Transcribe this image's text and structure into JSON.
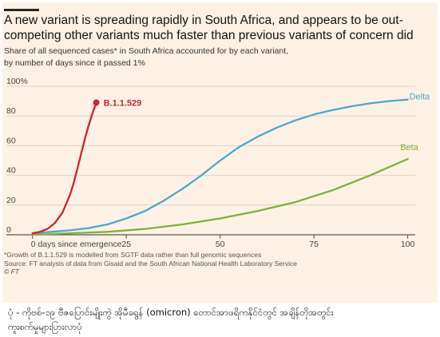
{
  "chart_data": {
    "type": "line",
    "title": "A new variant is spreading rapidly in South Africa, and appears to be out-competing other variants much faster than previous variants of concern did",
    "subtitle_lines": [
      "Share of all sequenced cases* in South Africa accounted for by each variant,",
      "by number of days since it passed 1%"
    ],
    "y_unit_label": "100%",
    "x_tick_labels": [
      "0 days since emergence",
      "25",
      "50",
      "75",
      "100"
    ],
    "x_ticks": [
      0,
      25,
      50,
      75,
      100
    ],
    "y_ticks": [
      0,
      20,
      40,
      60,
      80
    ],
    "xlim": [
      -1,
      102
    ],
    "ylim": [
      0,
      100
    ],
    "grid": "horizontal",
    "series": [
      {
        "name": "B.1.1.529",
        "color": "#cc2529",
        "x": [
          0,
          2,
          4,
          6,
          8,
          10,
          11,
          12,
          13,
          14,
          15,
          16,
          17
        ],
        "y": [
          1,
          2,
          4,
          8,
          15,
          27,
          35,
          45,
          55,
          65,
          74,
          82,
          89
        ]
      },
      {
        "name": "Delta",
        "color": "#4aa7d2",
        "x": [
          0,
          5,
          10,
          15,
          20,
          25,
          30,
          35,
          40,
          45,
          50,
          55,
          60,
          65,
          70,
          75,
          80,
          85,
          90,
          95,
          100
        ],
        "y": [
          1,
          2,
          3,
          4.5,
          7,
          11,
          16,
          23,
          31,
          40,
          50,
          59,
          66,
          72,
          77,
          81,
          84,
          86.5,
          88.5,
          90,
          91
        ]
      },
      {
        "name": "Beta",
        "color": "#7fb233",
        "x": [
          0,
          10,
          20,
          30,
          40,
          50,
          60,
          70,
          80,
          90,
          100
        ],
        "y": [
          0,
          1,
          2,
          4,
          7,
          11,
          16,
          22,
          30,
          40,
          51
        ]
      }
    ]
  },
  "footnote": {
    "lines": [
      "*Growth of B.1.1.529 is modelled from SGTF data rather than full genomic sequences",
      "Source: FT analysis of data from Gisaid and the South African National Health Laboratory Service"
    ],
    "credit": "© FT"
  },
  "caption": {
    "lines": [
      "ပုံ - ကိုဗစ်-၁၉ ဗီဇပြောင်းမျိုးကွဲ အိုမီခရွန် (omicron) တောင်အာဖရိကနိုင်ငံတွင် အချိန်တိုအတွင်း",
      "ကူးစက်မှုများပြားလာပုံ"
    ]
  }
}
